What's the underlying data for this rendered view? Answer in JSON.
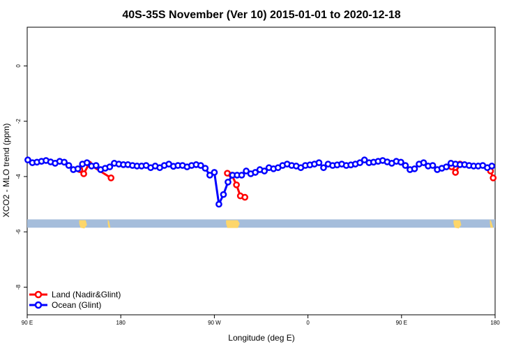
{
  "chart_data": {
    "type": "line",
    "title": "40S-35S November (Ver 10)   2015-01-01 to 2020-12-18",
    "xlabel": "Longitude (deg E)",
    "ylabel": "XCO2 - MLO trend (ppm)",
    "xlim": [
      90,
      450
    ],
    "ylim": [
      -9,
      1.4
    ],
    "x_ticks": [
      90,
      162,
      234,
      306,
      378,
      450
    ],
    "x_tick_labels": [
      "90 E",
      "180",
      "90 W",
      "0",
      "90 E",
      "180"
    ],
    "y_ticks": [
      0,
      -2,
      -4,
      -6,
      -8
    ],
    "y_tick_labels": [
      "0",
      "-2",
      "-4",
      "-6",
      "-8"
    ],
    "legend_position": "bottom-left",
    "band": {
      "y_min": -5.85,
      "y_max": -5.55,
      "color": "#a5bddb",
      "land_color": "#fdd66a"
    },
    "series": [
      {
        "name": "Land (Nadir&Glint)",
        "color": "#ff0000",
        "segments": [
          {
            "x": [
              130.5,
              133.5,
              137.5
            ],
            "y": [
              -3.75,
              -3.9,
              -3.55
            ]
          },
          {
            "x": [
              137.5,
              154.5
            ],
            "y": [
              -3.55,
              -4.05
            ]
          },
          {
            "x": [
              244.0,
              247.5,
              251.0,
              254.0,
              257.5
            ],
            "y": [
              -3.88,
              -3.95,
              -4.3,
              -4.7,
              -4.75
            ]
          },
          {
            "x": [
              416.5,
              419.5,
              423.0
            ],
            "y": [
              -3.65,
              -3.85,
              -3.55
            ]
          },
          {
            "x": [
              446.5,
              448.5
            ],
            "y": [
              -3.8,
              -4.05
            ]
          }
        ]
      },
      {
        "name": "Ocean (Glint)",
        "color": "#0000ff",
        "x": [
          90.5,
          94.0,
          97.5,
          101.0,
          104.5,
          108.0,
          111.5,
          115.0,
          118.5,
          122.0,
          125.5,
          129.0,
          132.5,
          136.0,
          139.5,
          143.0,
          146.5,
          150.0,
          153.5,
          157.0,
          160.5,
          164.0,
          167.5,
          171.0,
          174.5,
          178.0,
          181.5,
          185.0,
          188.5,
          192.0,
          195.5,
          199.0,
          202.5,
          206.0,
          209.5,
          213.0,
          216.5,
          220.0,
          223.5,
          227.0,
          230.5,
          234.0,
          237.5,
          241.0,
          244.5,
          248.0,
          251.5,
          255.0,
          258.5,
          262.0,
          265.5,
          269.0,
          272.5,
          276.0,
          279.5,
          283.0,
          286.5,
          290.0,
          293.5,
          297.0,
          300.5,
          304.0,
          307.5,
          311.0,
          314.5,
          318.0,
          321.5,
          325.0,
          328.5,
          332.0,
          335.5,
          339.0,
          342.5,
          346.0,
          349.5,
          353.0,
          356.5,
          360.0,
          363.5,
          367.0,
          370.5,
          374.0,
          377.5,
          381.0,
          384.5,
          388.0,
          391.5,
          395.0,
          398.5,
          402.0,
          405.5,
          409.0,
          412.5,
          416.0,
          419.5,
          423.0,
          426.5,
          430.0,
          433.5,
          437.0,
          440.5,
          444.0,
          447.5
        ],
        "y": [
          -3.4,
          -3.5,
          -3.48,
          -3.45,
          -3.42,
          -3.47,
          -3.52,
          -3.45,
          -3.48,
          -3.6,
          -3.75,
          -3.72,
          -3.55,
          -3.5,
          -3.62,
          -3.6,
          -3.75,
          -3.7,
          -3.65,
          -3.52,
          -3.55,
          -3.57,
          -3.57,
          -3.6,
          -3.62,
          -3.62,
          -3.6,
          -3.68,
          -3.62,
          -3.68,
          -3.6,
          -3.55,
          -3.63,
          -3.6,
          -3.6,
          -3.65,
          -3.6,
          -3.57,
          -3.6,
          -3.7,
          -3.95,
          -3.85,
          -5.0,
          -4.65,
          -4.2,
          -3.95,
          -3.95,
          -3.95,
          -3.8,
          -3.9,
          -3.85,
          -3.75,
          -3.8,
          -3.68,
          -3.72,
          -3.68,
          -3.6,
          -3.55,
          -3.6,
          -3.62,
          -3.68,
          -3.6,
          -3.58,
          -3.55,
          -3.5,
          -3.68,
          -3.55,
          -3.6,
          -3.58,
          -3.55,
          -3.6,
          -3.58,
          -3.55,
          -3.5,
          -3.4,
          -3.5,
          -3.48,
          -3.45,
          -3.42,
          -3.47,
          -3.52,
          -3.45,
          -3.48,
          -3.6,
          -3.75,
          -3.72,
          -3.55,
          -3.5,
          -3.62,
          -3.6,
          -3.75,
          -3.7,
          -3.65,
          -3.52,
          -3.55,
          -3.57,
          -3.57,
          -3.6,
          -3.62,
          -3.62,
          -3.6,
          -3.68,
          -3.62
        ]
      }
    ]
  }
}
